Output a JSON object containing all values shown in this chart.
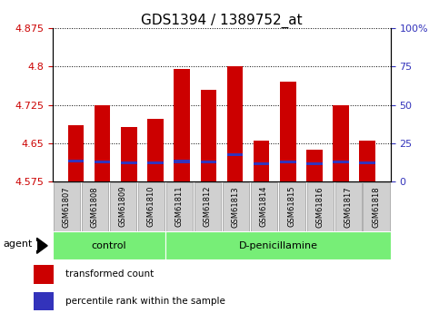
{
  "title": "GDS1394 / 1389752_at",
  "samples": [
    "GSM61807",
    "GSM61808",
    "GSM61809",
    "GSM61810",
    "GSM61811",
    "GSM61812",
    "GSM61813",
    "GSM61814",
    "GSM61815",
    "GSM61816",
    "GSM61817",
    "GSM61818"
  ],
  "red_values": [
    4.685,
    4.725,
    4.682,
    4.697,
    4.795,
    4.755,
    4.8,
    4.655,
    4.77,
    4.638,
    4.725,
    4.655
  ],
  "blue_values": [
    4.615,
    4.613,
    4.612,
    4.612,
    4.614,
    4.613,
    4.628,
    4.61,
    4.613,
    4.61,
    4.613,
    4.612
  ],
  "ymin": 4.575,
  "ymax": 4.875,
  "yticks_red": [
    4.575,
    4.65,
    4.725,
    4.8,
    4.875
  ],
  "blue_tick_positions": [
    4.575,
    4.65,
    4.725,
    4.8,
    4.875
  ],
  "blue_tick_labels": [
    "0",
    "25",
    "50",
    "75",
    "100%"
  ],
  "control_count": 4,
  "group_labels": [
    "control",
    "D-penicillamine"
  ],
  "legend_items": [
    "transformed count",
    "percentile rank within the sample"
  ],
  "red_color": "#cc0000",
  "blue_color": "#3333bb",
  "green_color": "#77ee77",
  "bar_width": 0.6,
  "title_fontsize": 11,
  "tick_fontsize": 8,
  "label_fontsize": 8
}
